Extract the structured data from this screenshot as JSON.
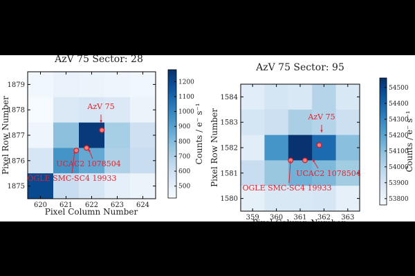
{
  "chart_data": [
    {
      "type": "heatmap",
      "title": "AzV 75   Sector:  28",
      "xlabel": "Pixel Column Number",
      "ylabel": "Pixel Row Number",
      "colorbar_label": "Counts / e⁻ s⁻¹",
      "x_ticks": [
        "620",
        "621",
        "622",
        "623",
        "624"
      ],
      "y_ticks": [
        "1875",
        "1876",
        "1877",
        "1878",
        "1879"
      ],
      "colorbar_ticks": [
        "500",
        "600",
        "700",
        "800",
        "900",
        "1000",
        "1100",
        "1200"
      ],
      "vmin": 420,
      "vmax": 1280,
      "grid_rows_top_to_bottom": [
        [
          450,
          480,
          470,
          460,
          450
        ],
        [
          430,
          540,
          560,
          540,
          470
        ],
        [
          460,
          780,
          1250,
          720,
          600
        ],
        [
          560,
          950,
          870,
          700,
          620
        ],
        [
          1200,
          620,
          560,
          500,
          470
        ]
      ],
      "markers": [
        {
          "name": "AzV 75",
          "col": 622.4,
          "row": 1877.2
        },
        {
          "name": "UCAC2 1078504",
          "col": 621.8,
          "row": 1876.5
        },
        {
          "name": "OGLE SMC-SC4 19933",
          "col": 621.4,
          "row": 1876.4
        }
      ],
      "annotations": [
        "AzV 75",
        "UCAC2 1078504",
        "OGLE SMC-SC4 19933"
      ]
    },
    {
      "type": "heatmap",
      "title": "AzV 75   Sector:  95",
      "xlabel": "Pixel Column Number",
      "ylabel": "Pixel Row Number",
      "colorbar_label": "Counts / e⁻ s⁻¹",
      "x_ticks": [
        "359",
        "360",
        "361",
        "362",
        "363"
      ],
      "y_ticks": [
        "1580",
        "1581",
        "1582",
        "1583",
        "1584"
      ],
      "colorbar_ticks": [
        "53800",
        "53900",
        "54000",
        "54100",
        "54200",
        "54300",
        "54400",
        "54500"
      ],
      "vmin": 53760,
      "vmax": 54560,
      "grid_rows_top_to_bottom": [
        [
          53850,
          53900,
          53880,
          54000,
          53880
        ],
        [
          53900,
          53930,
          54030,
          54000,
          53930
        ],
        [
          53850,
          54250,
          54550,
          54380,
          54100
        ],
        [
          53950,
          54070,
          54150,
          54120,
          54050
        ],
        [
          53830,
          53880,
          53880,
          53890,
          53830
        ]
      ],
      "markers": [
        {
          "name": "AzV 75",
          "col": 361.8,
          "row": 1582.1
        },
        {
          "name": "UCAC2 1078504",
          "col": 361.2,
          "row": 1581.5
        },
        {
          "name": "OGLE SMC-SC4 19933",
          "col": 360.6,
          "row": 1581.5
        }
      ],
      "annotations": [
        "AzV 75",
        "UCAC2 1078504",
        "OGLE SMC-SC4 19933"
      ]
    }
  ]
}
